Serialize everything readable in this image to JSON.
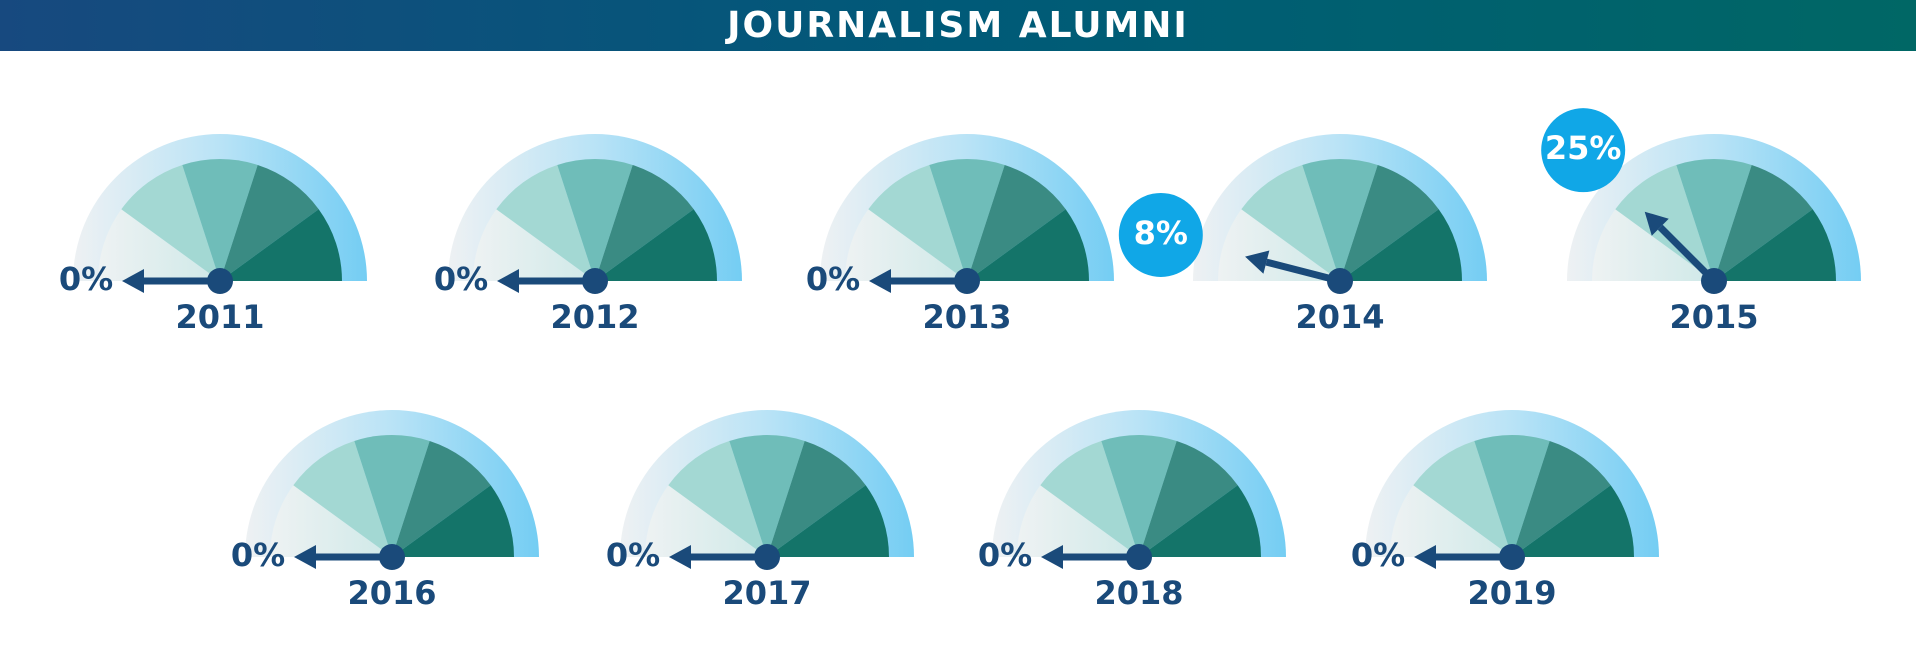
{
  "chart_data": {
    "type": "gauge",
    "title": "JOURNALISM ALUMNI",
    "categories": [
      "2011",
      "2012",
      "2013",
      "2014",
      "2015",
      "2016",
      "2017",
      "2018",
      "2019"
    ],
    "values": [
      0,
      0,
      0,
      8,
      25,
      0,
      0,
      0,
      0
    ],
    "value_labels": [
      "0%",
      "0%",
      "0%",
      "8%",
      "25%",
      "0%",
      "0%",
      "0%",
      "0%"
    ],
    "ylim": [
      0,
      100
    ],
    "color": "#1a4a7a"
  }
}
